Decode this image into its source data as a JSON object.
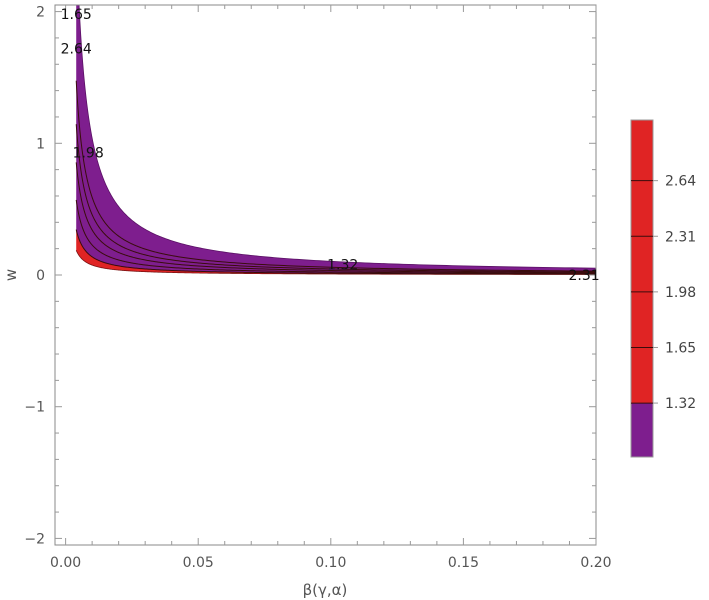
{
  "chart_data": {
    "type": "contour",
    "title": "",
    "xlabel": "β(γ,α)",
    "ylabel": "w",
    "xlim": [
      -0.004,
      0.2
    ],
    "ylim": [
      -2.05,
      2.05
    ],
    "x_ticks": [
      {
        "value": 0.0,
        "label": "0.00"
      },
      {
        "value": 0.05,
        "label": "0.05"
      },
      {
        "value": 0.1,
        "label": "0.10"
      },
      {
        "value": 0.15,
        "label": "0.15"
      },
      {
        "value": 0.2,
        "label": "0.20"
      }
    ],
    "y_ticks": [
      {
        "value": -2,
        "label": "−2"
      },
      {
        "value": -1,
        "label": "−1"
      },
      {
        "value": 0,
        "label": "0"
      },
      {
        "value": 1,
        "label": "1"
      },
      {
        "value": 2,
        "label": "2"
      }
    ],
    "contour_levels": [
      1.32,
      1.65,
      1.98,
      2.31,
      2.64
    ],
    "band_k": {
      "inner": 0.00075,
      "outer": 0.0104
    },
    "contour_k": [
      0.00138,
      0.00228,
      0.00342,
      0.00458,
      0.0059
    ],
    "band_x_start": 0.004,
    "colors": {
      "purple": "#7e1e8e",
      "red": "#e02424",
      "line": "#3a0c0c",
      "frame": "#888888"
    },
    "contour_labels": [
      {
        "text": "1.65",
        "x": 0.004,
        "y": 1.98
      },
      {
        "text": "2.64",
        "x": 0.004,
        "y": 1.72
      },
      {
        "text": "1.98",
        "x": 0.0085,
        "y": 0.93
      },
      {
        "text": "1.32",
        "x": 0.1045,
        "y": 0.08
      },
      {
        "text": "2.31",
        "x": 0.1955,
        "y": 0.0
      }
    ],
    "legend": {
      "labels": [
        "2.64",
        "2.31",
        "1.98",
        "1.65",
        "1.32"
      ],
      "levels": [
        2.64,
        2.31,
        1.98,
        1.65,
        1.32
      ],
      "range": [
        1.0,
        3.0
      ],
      "split": 1.32
    }
  }
}
